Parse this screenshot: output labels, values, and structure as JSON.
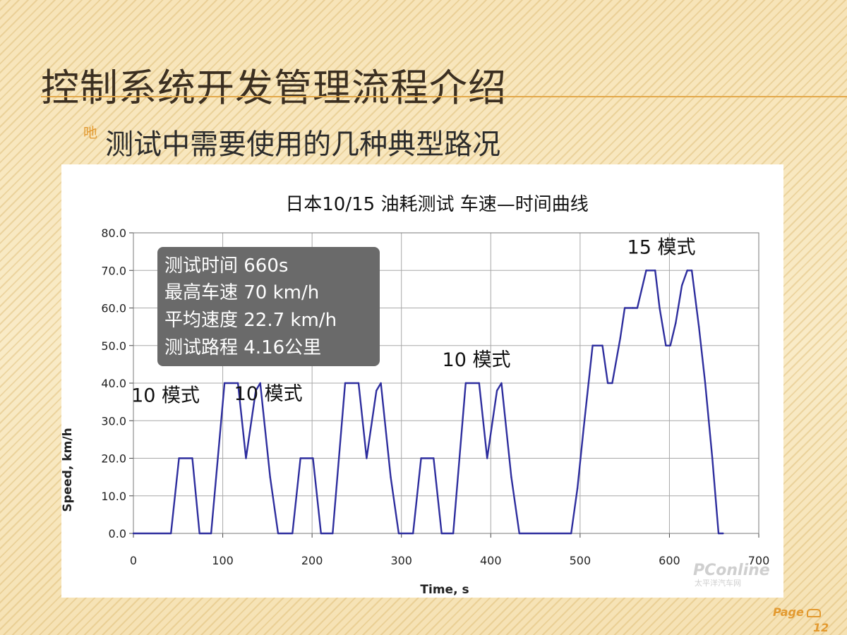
{
  "slide": {
    "title": "控制系统开发管理流程介绍",
    "bullet_glyph": "吔",
    "subtitle": "测试中需要使用的几种典型路况",
    "page_label": "Page",
    "page_number": "12"
  },
  "colors": {
    "title": "#3b2f21",
    "accent": "#e39a30",
    "series": "#2e2e9e",
    "info_box": "#6a6a6a"
  },
  "info_box": {
    "lines": [
      "测试时间 660s",
      "最高车速 70 km/h",
      "平均速度 22.7 km/h",
      "测试路程 4.16公里"
    ]
  },
  "watermark": {
    "logo_text": "PConline",
    "caption": "太平洋汽车网"
  },
  "chart_data": {
    "type": "line",
    "title": "日本10/15 油耗测试  车速—时间曲线",
    "xlabel": "Time, s",
    "ylabel": "Speed, km/h",
    "xlim": [
      0,
      700
    ],
    "ylim": [
      0,
      80
    ],
    "x_ticks": [
      "0",
      "100",
      "200",
      "300",
      "400",
      "500",
      "600",
      "700"
    ],
    "y_ticks": [
      "0.0",
      "10.0",
      "20.0",
      "30.0",
      "40.0",
      "50.0",
      "60.0",
      "70.0",
      "80.0"
    ],
    "grid": true,
    "annotations": [
      {
        "text": "10 模式",
        "x": 36,
        "y": 35
      },
      {
        "text": "10 模式",
        "x": 151,
        "y": 35.5
      },
      {
        "text": "10 模式",
        "x": 384,
        "y": 44.5
      },
      {
        "text": "15 模式",
        "x": 591,
        "y": 74.5
      }
    ],
    "series": [
      {
        "x": [
          0,
          42,
          51,
          66,
          74,
          87,
          102,
          117,
          126,
          137,
          142,
          153,
          162,
          178,
          187,
          201,
          210,
          223,
          237,
          252,
          261,
          272,
          277,
          288,
          297,
          313,
          322,
          336,
          345,
          358,
          372,
          387,
          396,
          407,
          412,
          423,
          432,
          490,
          497,
          504,
          514,
          525,
          531,
          536,
          545,
          550,
          559,
          564,
          574,
          584,
          589,
          596,
          601,
          607,
          614,
          620,
          625,
          633,
          640,
          648,
          655,
          660
        ],
        "y": [
          0,
          0,
          20,
          20,
          0,
          0,
          40,
          40,
          20,
          38,
          40,
          15,
          0,
          0,
          20,
          20,
          0,
          0,
          40,
          40,
          20,
          38,
          40,
          15,
          0,
          0,
          20,
          20,
          0,
          0,
          40,
          40,
          20,
          38,
          40,
          15,
          0,
          0,
          12,
          28,
          50,
          50,
          40,
          40,
          52,
          60,
          60,
          60,
          70,
          70,
          60,
          50,
          50,
          56,
          66,
          70,
          70,
          55,
          40,
          20,
          0,
          0
        ]
      }
    ]
  }
}
